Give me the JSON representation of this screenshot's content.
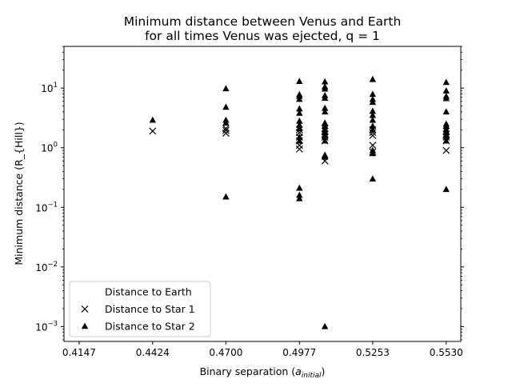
{
  "chart_data": {
    "type": "scatter",
    "title": [
      "Minimum distance between  Venus and Earth",
      "for all times Venus was ejected, q = 1"
    ],
    "xlabel": "Binary separation (",
    "xlabel_sub": "initial",
    "xlabel_a": "a",
    "xlabel_end": ")",
    "ylabel": "Minimum distance (R_{Hill})",
    "y_scale": "log",
    "xlim": [
      0.409,
      0.5585
    ],
    "ylim_log10": [
      -3.25,
      1.7
    ],
    "x_ticks": [
      0.4147,
      0.4424,
      0.47,
      0.4977,
      0.5253,
      0.553
    ],
    "x_tick_labels": [
      "0.4147",
      "0.4424",
      "0.4700",
      "0.4977",
      "0.5253",
      "0.5530"
    ],
    "y_ticks": [
      {
        "value": 10,
        "base": "10",
        "exp": "1"
      },
      {
        "value": 1,
        "base": "10",
        "exp": "0"
      },
      {
        "value": 0.1,
        "base": "10",
        "exp": "−1"
      },
      {
        "value": 0.01,
        "base": "10",
        "exp": "−2"
      },
      {
        "value": 0.001,
        "base": "10",
        "exp": "−3"
      }
    ],
    "legend": {
      "location": "lower left",
      "entries": [
        "Distance to Earth",
        "Distance to Star 1",
        "Distance to Star 2"
      ]
    },
    "series": [
      {
        "name": "Distance to Earth",
        "marker": "none",
        "points": []
      },
      {
        "name": "Distance to Star 1",
        "marker": "x",
        "points": [
          [
            0.4424,
            1.9
          ],
          [
            0.47,
            1.75
          ],
          [
            0.47,
            1.95
          ],
          [
            0.47,
            2.1
          ],
          [
            0.4977,
            0.95
          ],
          [
            0.4977,
            1.1
          ],
          [
            0.4977,
            1.3
          ],
          [
            0.4977,
            1.5
          ],
          [
            0.4977,
            1.8
          ],
          [
            0.4977,
            2.0
          ],
          [
            0.5073,
            0.6
          ],
          [
            0.5073,
            1.3
          ],
          [
            0.5073,
            1.5
          ],
          [
            0.5073,
            1.7
          ],
          [
            0.5073,
            1.9
          ],
          [
            0.5073,
            2.1
          ],
          [
            0.5253,
            0.85
          ],
          [
            0.5253,
            1.1
          ],
          [
            0.5253,
            1.6
          ],
          [
            0.5253,
            1.8
          ],
          [
            0.5253,
            2.0
          ],
          [
            0.553,
            0.9
          ],
          [
            0.553,
            1.3
          ],
          [
            0.553,
            1.5
          ],
          [
            0.553,
            1.7
          ],
          [
            0.553,
            1.9
          ]
        ]
      },
      {
        "name": "Distance to Star 2",
        "marker": "triangle",
        "points": [
          [
            0.4424,
            2.9
          ],
          [
            0.47,
            0.15
          ],
          [
            0.47,
            2.6
          ],
          [
            0.47,
            2.9
          ],
          [
            0.47,
            4.8
          ],
          [
            0.47,
            9.8
          ],
          [
            0.4977,
            0.14
          ],
          [
            0.4977,
            0.16
          ],
          [
            0.4977,
            0.21
          ],
          [
            0.4977,
            1.3
          ],
          [
            0.4977,
            1.5
          ],
          [
            0.4977,
            2.1
          ],
          [
            0.4977,
            2.4
          ],
          [
            0.4977,
            2.8
          ],
          [
            0.4977,
            3.8
          ],
          [
            0.4977,
            4.5
          ],
          [
            0.4977,
            6.5
          ],
          [
            0.4977,
            7.3
          ],
          [
            0.4977,
            7.8
          ],
          [
            0.4977,
            13.0
          ],
          [
            0.5073,
            0.001
          ],
          [
            0.5073,
            0.7
          ],
          [
            0.5073,
            0.75
          ],
          [
            0.5073,
            1.3
          ],
          [
            0.5073,
            1.6
          ],
          [
            0.5073,
            1.8
          ],
          [
            0.5073,
            2.0
          ],
          [
            0.5073,
            2.3
          ],
          [
            0.5073,
            2.6
          ],
          [
            0.5073,
            4.0
          ],
          [
            0.5073,
            4.6
          ],
          [
            0.5073,
            6.8
          ],
          [
            0.5073,
            7.5
          ],
          [
            0.5073,
            9.7
          ],
          [
            0.5073,
            10.5
          ],
          [
            0.5073,
            12.8
          ],
          [
            0.5253,
            0.3
          ],
          [
            0.5253,
            0.8
          ],
          [
            0.5253,
            0.9
          ],
          [
            0.5253,
            2.0
          ],
          [
            0.5253,
            2.3
          ],
          [
            0.5253,
            2.9
          ],
          [
            0.5253,
            3.5
          ],
          [
            0.5253,
            4.1
          ],
          [
            0.5253,
            5.8
          ],
          [
            0.5253,
            6.5
          ],
          [
            0.5253,
            7.9
          ],
          [
            0.5253,
            14.0
          ],
          [
            0.553,
            0.2
          ],
          [
            0.553,
            1.3
          ],
          [
            0.553,
            1.6
          ],
          [
            0.553,
            1.8
          ],
          [
            0.553,
            2.0
          ],
          [
            0.553,
            2.3
          ],
          [
            0.553,
            2.5
          ],
          [
            0.553,
            4.0
          ],
          [
            0.553,
            6.7
          ],
          [
            0.553,
            7.3
          ],
          [
            0.553,
            9.0
          ],
          [
            0.553,
            12.5
          ]
        ]
      }
    ]
  }
}
